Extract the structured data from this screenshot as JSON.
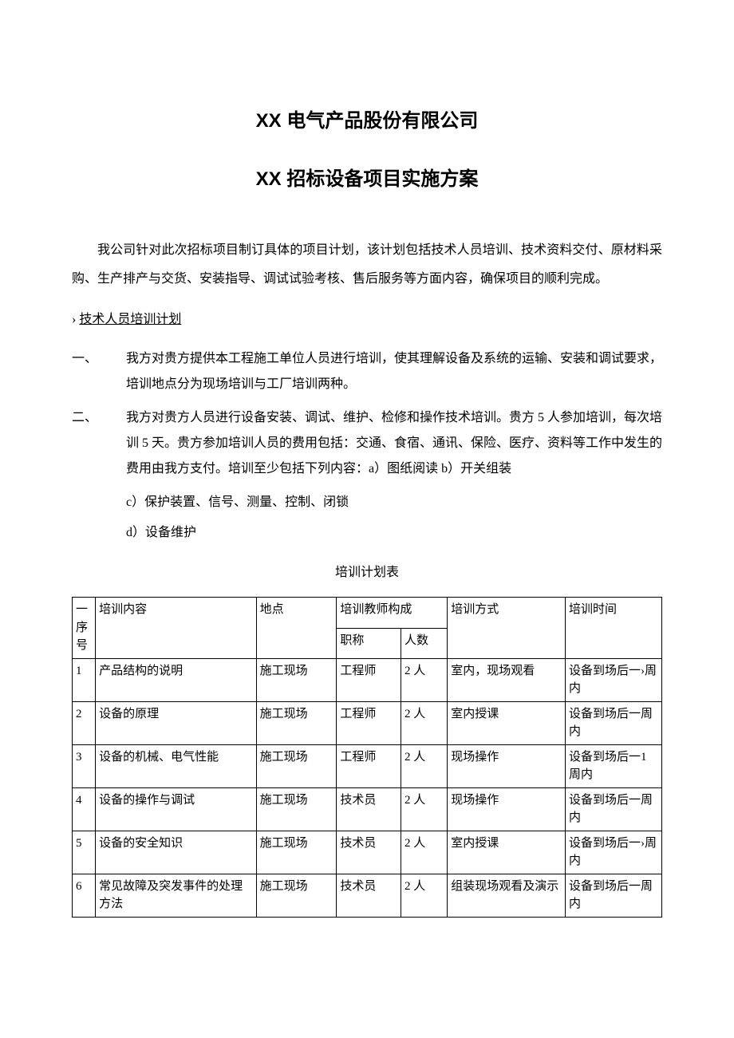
{
  "titles": {
    "company": "XX 电气产品股份有限公司",
    "project": "XX 招标设备项目实施方案"
  },
  "intro": "我公司针对此次招标项目制订具体的项目计划，该计划包括技术人员培训、技术资料交付、原材料采购、生产排产与交货、安装指导、调试试验考核、售后服务等方面内容，确保项目的顺利完成。",
  "section": {
    "marker": "›",
    "heading": "技术人员培训计划"
  },
  "items": [
    {
      "num": "一、",
      "text": "我方对贵方提供本工程施工单位人员进行培训，使其理解设备及系统的运输、安装和调试要求，培训地点分为现场培训与工厂培训两种。"
    },
    {
      "num": "二、",
      "text": "我方对贵方人员进行设备安装、调试、维护、检修和操作技术培训。贵方 5 人参加培训，每次培训 5 天。贵方参加培训人员的费用包括：交通、食宿、通讯、保险、医疗、资料等工作中发生的费用由我方支付。培训至少包括下列内容：a）图纸阅读 b）开关组装"
    }
  ],
  "sub_lines": [
    "c）保护装置、信号、测量、控制、闭锁",
    "d）设备维护"
  ],
  "table": {
    "caption": "培训计划表",
    "headers": {
      "seq": "一序号",
      "content": "培训内容",
      "location": "地点",
      "teacher_group": "培训教师构成",
      "title": "职称",
      "count": "人数",
      "method": "培训方式",
      "time": "培训时间"
    },
    "rows": [
      {
        "seq": "1",
        "content": "产品结构的说明",
        "location": "施工现场",
        "title": "工程师",
        "count": "2 人",
        "method": "室内，现场观看",
        "time": "设备到场后一›周内"
      },
      {
        "seq": "2",
        "content": "设备的原理",
        "location": "施工现场",
        "title": "工程师",
        "count": "2 人",
        "method": "室内授课",
        "time": "设备到场后一周内"
      },
      {
        "seq": "3",
        "content": "设备的机械、电气性能",
        "location": "施工现场",
        "title": "工程师",
        "count": "2 人",
        "method": "现场操作",
        "time": "设备到场后一1 周内"
      },
      {
        "seq": "4",
        "content": "设备的操作与调试",
        "location": "施工现场",
        "title": "技术员",
        "count": "2 人",
        "method": "现场操作",
        "time": "设备到场后一周内"
      },
      {
        "seq": "5",
        "content": "设备的安全知识",
        "location": "施工现场",
        "title": "技术员",
        "count": "2 人",
        "method": "室内授课",
        "time": "设备到场后一›周内"
      },
      {
        "seq": "6",
        "content": "常见故障及突发事件的处理方法",
        "location": "施工现场",
        "title": "技术员",
        "count": "2 人",
        "method": "组装现场观看及演示",
        "time": "设备到场后一周内"
      }
    ]
  },
  "colors": {
    "text": "#000000",
    "background": "#ffffff",
    "border": "#000000"
  }
}
